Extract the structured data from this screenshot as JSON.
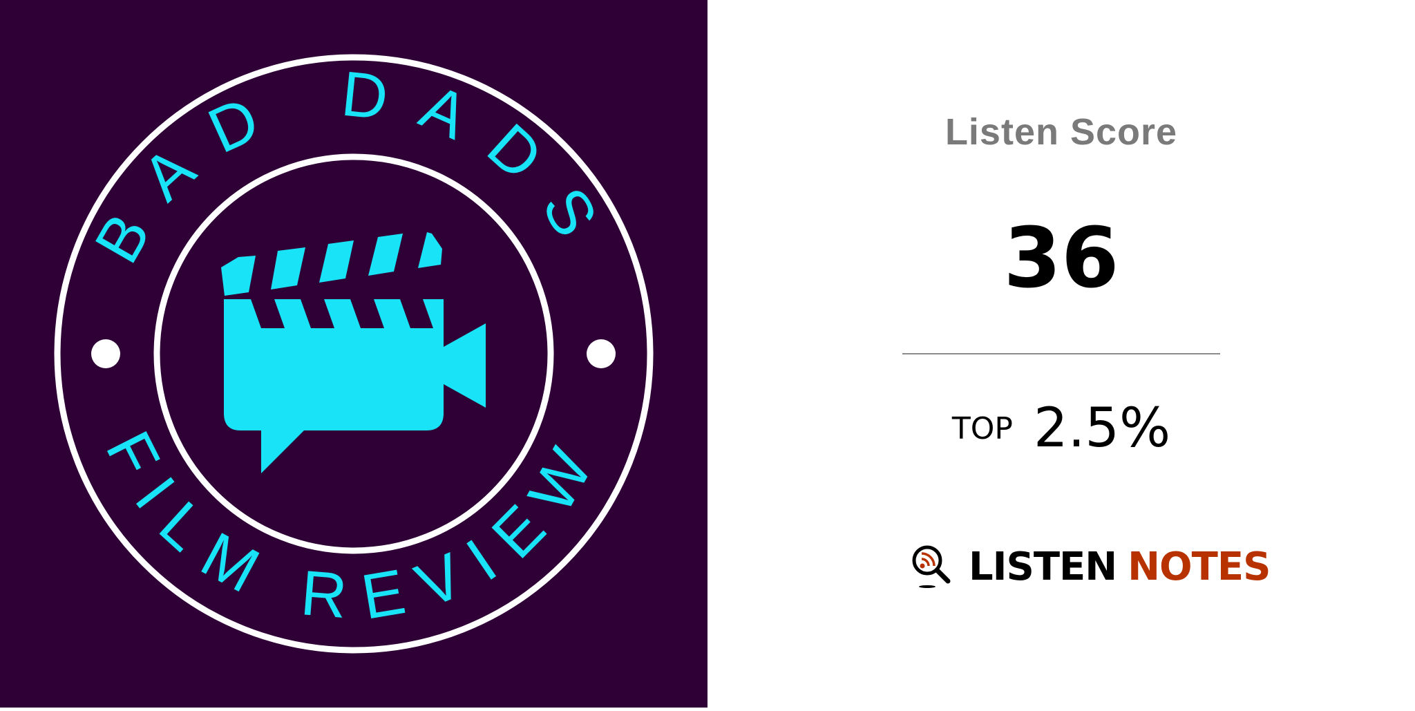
{
  "artwork": {
    "text_top": "BAD DADS",
    "text_bottom": "FILM REVIEW",
    "background": "#2e0036",
    "accent": "#19e3f7"
  },
  "score": {
    "title": "Listen Score",
    "value": "36",
    "rank_prefix": "TOP",
    "rank_value": "2.5%"
  },
  "brand": {
    "word1": "LISTEN",
    "word2": "NOTES",
    "color1": "#000000",
    "color2": "#b83200",
    "icon": "magnifier-rss-icon"
  }
}
